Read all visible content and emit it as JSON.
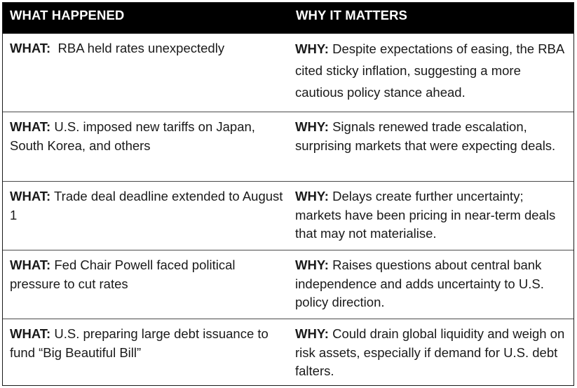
{
  "header": {
    "left": "WHAT HAPPENED",
    "right": "WHY IT MATTERS"
  },
  "rows": [
    {
      "what_label": "WHAT:",
      "what_text": "  RBA held rates unexpectedly",
      "why_label": "WHY:",
      "why_text": " Despite expectations of easing, the RBA cited sticky inflation, suggesting a more cautious policy stance ahead."
    },
    {
      "what_label": "WHAT:",
      "what_text": " U.S. imposed new tariffs on Japan, South Korea, and others",
      "why_label": "WHY:",
      "why_text": " Signals renewed trade escalation, surprising markets that were expecting deals."
    },
    {
      "what_label": "WHAT:",
      "what_text": " Trade deal deadline extended to August 1",
      "why_label": "WHY:",
      "why_text": " Delays create further uncertainty; markets have been pricing in near-term deals that may not materialise."
    },
    {
      "what_label": "WHAT:",
      "what_text": " Fed Chair Powell faced political pressure to cut rates",
      "why_label": "WHY:",
      "why_text": " Raises questions about central bank independence and adds uncertainty to U.S. policy direction."
    },
    {
      "what_label": "WHAT:",
      "what_text": " U.S. preparing large debt issuance to fund “Big Beautiful Bill”",
      "why_label": "WHY:",
      "why_text": " Could drain global liquidity and weigh on risk assets, especially if demand for U.S. debt falters."
    }
  ]
}
